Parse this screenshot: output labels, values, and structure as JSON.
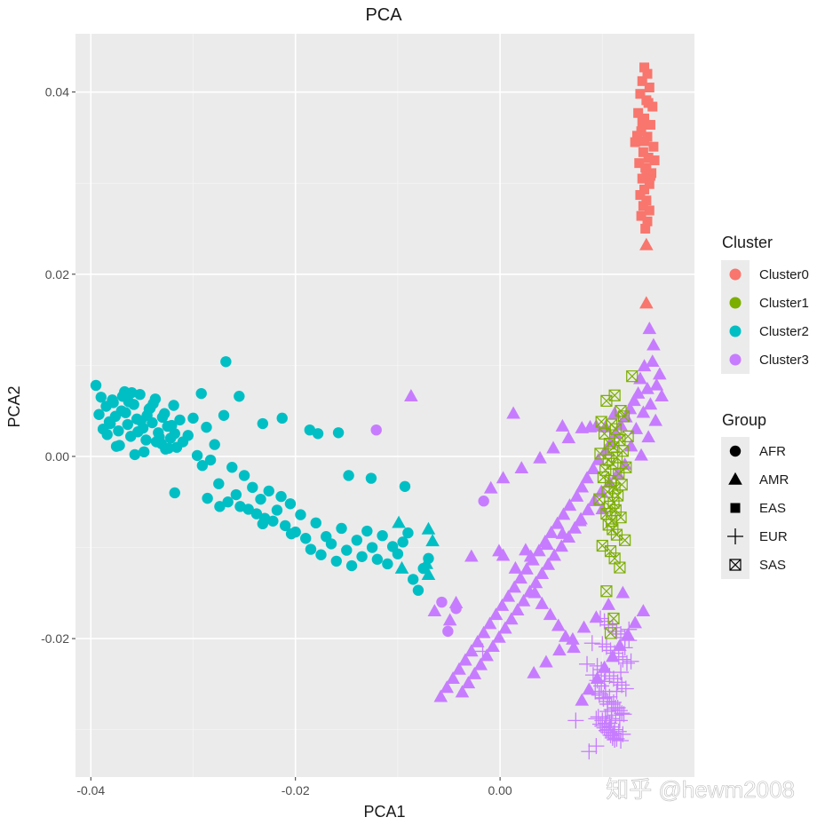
{
  "chart_data": {
    "type": "scatter",
    "title": "PCA",
    "xlabel": "PCA1",
    "ylabel": "PCA2",
    "xlim": [
      -0.0415,
      0.019
    ],
    "ylim": [
      -0.0352,
      0.0464
    ],
    "x_major_ticks": [
      -0.04,
      -0.02,
      0.0
    ],
    "x_tick_labels": [
      "-0.04",
      "-0.02",
      "0.00"
    ],
    "x_minor_ticks": [
      -0.03,
      -0.01,
      0.01
    ],
    "y_major_ticks": [
      -0.02,
      0.0,
      0.02,
      0.04
    ],
    "y_tick_labels": [
      "-0.02",
      "0.00",
      "0.02",
      "0.04"
    ],
    "y_minor_ticks": [
      -0.03,
      -0.01,
      0.01,
      0.03
    ],
    "legend_position": "right",
    "cluster_legend": {
      "title": "Cluster",
      "entries": [
        {
          "name": "Cluster0",
          "color": "#F8766D"
        },
        {
          "name": "Cluster1",
          "color": "#7CAE00"
        },
        {
          "name": "Cluster2",
          "color": "#00BFC4"
        },
        {
          "name": "Cluster3",
          "color": "#C77CFF"
        }
      ]
    },
    "group_legend": {
      "title": "Group",
      "entries": [
        {
          "name": "AFR",
          "shape": "circle"
        },
        {
          "name": "AMR",
          "shape": "triangle"
        },
        {
          "name": "EAS",
          "shape": "square"
        },
        {
          "name": "EUR",
          "shape": "plus"
        },
        {
          "name": "SAS",
          "shape": "boxx"
        }
      ]
    },
    "series": [
      {
        "name": "Cluster0 / EAS",
        "cluster": "Cluster0",
        "group": "EAS",
        "x": [
          0.0141,
          0.0144,
          0.0139,
          0.0146,
          0.0137,
          0.0143,
          0.0149,
          0.0135,
          0.0141,
          0.0147,
          0.0138,
          0.0144,
          0.0132,
          0.015,
          0.014,
          0.0145,
          0.0136,
          0.0142,
          0.0148,
          0.0139,
          0.0134,
          0.0146,
          0.0141,
          0.0151,
          0.0137,
          0.0143,
          0.014,
          0.0146,
          0.0138,
          0.0144,
          0.0142,
          0.0147,
          0.0139,
          0.0145,
          0.0141,
          0.0143
        ],
        "y": [
          0.0427,
          0.042,
          0.0412,
          0.0405,
          0.0398,
          0.0391,
          0.0384,
          0.0377,
          0.0371,
          0.0364,
          0.0357,
          0.0351,
          0.0345,
          0.034,
          0.0334,
          0.0328,
          0.0322,
          0.0317,
          0.0311,
          0.0305,
          0.0352,
          0.0299,
          0.0293,
          0.0325,
          0.0287,
          0.0281,
          0.0275,
          0.027,
          0.0264,
          0.0258,
          0.025,
          0.0308,
          0.0367,
          0.0388,
          0.0346,
          0.0315
        ]
      },
      {
        "name": "Cluster0 / AMR",
        "cluster": "Cluster0",
        "group": "AMR",
        "x": [
          0.0143,
          0.0143
        ],
        "y": [
          0.0232,
          0.0168
        ]
      },
      {
        "name": "Cluster1 / SAS",
        "cluster": "Cluster1",
        "group": "SAS",
        "x": [
          0.0129,
          0.0112,
          0.0104,
          0.0118,
          0.0121,
          0.0099,
          0.0109,
          0.0113,
          0.0102,
          0.0125,
          0.0117,
          0.0107,
          0.0111,
          0.012,
          0.0098,
          0.0114,
          0.0106,
          0.011,
          0.0123,
          0.0103,
          0.0116,
          0.0101,
          0.0108,
          0.0119,
          0.0112,
          0.0105,
          0.0115,
          0.0097,
          0.0111,
          0.0107,
          0.0113,
          0.0104,
          0.0118,
          0.0109,
          0.0106,
          0.011,
          0.0114,
          0.0122,
          0.01,
          0.0108,
          0.0112,
          0.0117,
          0.0104,
          0.0111,
          0.0108
        ],
        "y": [
          0.0088,
          0.0067,
          0.0061,
          0.005,
          0.0044,
          0.0038,
          0.0035,
          0.003,
          0.0025,
          0.0022,
          0.0018,
          0.0014,
          0.001,
          0.0006,
          0.0003,
          -0.0001,
          -0.0004,
          -0.0008,
          -0.0012,
          -0.0015,
          -0.0019,
          -0.0023,
          -0.0027,
          -0.0031,
          -0.0035,
          -0.0039,
          -0.0043,
          -0.0047,
          -0.0051,
          -0.0055,
          -0.0059,
          -0.0063,
          -0.0067,
          -0.0071,
          -0.0075,
          -0.008,
          -0.0086,
          -0.0092,
          -0.0098,
          -0.0104,
          -0.0112,
          -0.0122,
          -0.0148,
          -0.0178,
          -0.0194
        ]
      },
      {
        "name": "Cluster2 / AFR",
        "cluster": "Cluster2",
        "group": "AFR",
        "x": [
          -0.0395,
          -0.0392,
          -0.0388,
          -0.0385,
          -0.0382,
          -0.0379,
          -0.0376,
          -0.0373,
          -0.037,
          -0.0367,
          -0.0364,
          -0.0361,
          -0.0358,
          -0.0355,
          -0.0352,
          -0.0349,
          -0.0346,
          -0.0343,
          -0.034,
          -0.0337,
          -0.0334,
          -0.0331,
          -0.0328,
          -0.0325,
          -0.0322,
          -0.0319,
          -0.0316,
          -0.0313,
          -0.039,
          -0.0384,
          -0.0378,
          -0.0372,
          -0.0366,
          -0.036,
          -0.0354,
          -0.0348,
          -0.0342,
          -0.0336,
          -0.033,
          -0.0324,
          -0.0318,
          -0.0381,
          -0.0369,
          -0.0357,
          -0.0345,
          -0.0333,
          -0.0321,
          -0.0375,
          -0.0363,
          -0.0351,
          -0.0339,
          -0.0327,
          -0.031,
          -0.0305,
          -0.03,
          -0.0296,
          -0.0291,
          -0.0287,
          -0.0283,
          -0.0279,
          -0.0275,
          -0.027,
          -0.0266,
          -0.0262,
          -0.0258,
          -0.0254,
          -0.025,
          -0.0246,
          -0.0242,
          -0.0238,
          -0.0234,
          -0.023,
          -0.0226,
          -0.0222,
          -0.0218,
          -0.0214,
          -0.021,
          -0.0205,
          -0.02,
          -0.0195,
          -0.019,
          -0.0185,
          -0.018,
          -0.0175,
          -0.017,
          -0.0165,
          -0.016,
          -0.0155,
          -0.015,
          -0.0145,
          -0.014,
          -0.0135,
          -0.013,
          -0.0125,
          -0.012,
          -0.0115,
          -0.011,
          -0.0105,
          -0.01,
          -0.0095,
          -0.009,
          -0.0085,
          -0.008,
          -0.0075,
          -0.007,
          -0.0268,
          -0.0292,
          -0.0255,
          -0.0232,
          -0.0213,
          -0.0186,
          -0.0178,
          -0.0158,
          -0.0148,
          -0.0126,
          -0.0093,
          -0.0318,
          -0.0286,
          -0.0274,
          -0.0232,
          -0.0204
        ],
        "y": [
          0.0078,
          0.0046,
          0.003,
          0.0055,
          0.0038,
          0.0062,
          0.0044,
          0.0028,
          0.005,
          0.0071,
          0.0035,
          0.0022,
          0.0057,
          0.0041,
          0.0068,
          0.0031,
          0.0018,
          0.0052,
          0.0037,
          0.0063,
          0.0026,
          0.0014,
          0.0047,
          0.0033,
          0.002,
          0.0056,
          0.001,
          0.004,
          0.0065,
          0.0024,
          0.0059,
          0.0012,
          0.0048,
          0.007,
          0.0027,
          0.0005,
          0.0053,
          0.0016,
          0.0043,
          0.0009,
          0.0025,
          0.0036,
          0.0066,
          0.0002,
          0.0045,
          0.0021,
          0.0034,
          0.0011,
          0.006,
          0.0039,
          0.0058,
          0.0008,
          0.0016,
          0.0023,
          0.0042,
          0.0001,
          -0.001,
          0.0032,
          -0.0004,
          0.0013,
          -0.003,
          0.0045,
          -0.005,
          -0.0012,
          -0.0042,
          -0.0055,
          -0.0021,
          -0.0058,
          -0.0034,
          -0.0063,
          -0.0047,
          -0.0068,
          -0.0038,
          -0.0071,
          -0.0059,
          -0.0044,
          -0.0076,
          -0.0052,
          -0.0083,
          -0.0064,
          -0.009,
          -0.0102,
          -0.0073,
          -0.0108,
          -0.0088,
          -0.0096,
          -0.0115,
          -0.0079,
          -0.0103,
          -0.012,
          -0.0092,
          -0.011,
          -0.0082,
          -0.01,
          -0.0113,
          -0.0087,
          -0.0118,
          -0.0099,
          -0.0107,
          -0.0094,
          -0.0084,
          -0.0135,
          -0.0147,
          -0.0123,
          -0.0112,
          0.0104,
          0.0069,
          0.0066,
          0.0036,
          0.0042,
          0.0029,
          0.0025,
          0.0026,
          -0.0021,
          -0.0024,
          -0.0033,
          -0.004,
          -0.0046,
          -0.0055,
          -0.0074,
          -0.0085
        ]
      },
      {
        "name": "Cluster2 / AMR",
        "cluster": "Cluster2",
        "group": "AMR",
        "x": [
          -0.0099,
          -0.007,
          -0.0066,
          -0.007,
          -0.0096,
          -0.0072
        ],
        "y": [
          -0.0073,
          -0.008,
          -0.0093,
          -0.013,
          -0.0123,
          -0.0118
        ]
      },
      {
        "name": "Cluster3 / AFR",
        "cluster": "Cluster3",
        "group": "AFR",
        "x": [
          -0.0121,
          -0.0016,
          -0.0057,
          -0.0043,
          -0.0051
        ],
        "y": [
          0.0029,
          -0.0049,
          -0.016,
          -0.0167,
          -0.0192
        ]
      },
      {
        "name": "Cluster3 / AMR",
        "cluster": "Cluster3",
        "group": "AMR",
        "x": [
          0.0146,
          0.015,
          0.0149,
          0.0141,
          0.0156,
          0.0137,
          0.0153,
          0.0144,
          0.0135,
          0.0158,
          0.0131,
          0.0147,
          0.0127,
          0.014,
          0.0123,
          0.0152,
          0.0118,
          0.0133,
          0.0113,
          0.0145,
          0.0108,
          0.0128,
          0.0103,
          0.0138,
          0.0096,
          0.0122,
          0.0091,
          0.0115,
          0.0085,
          0.0107,
          0.008,
          0.0099,
          0.0075,
          0.0092,
          0.0068,
          0.0086,
          0.0062,
          0.0079,
          0.0056,
          0.0073,
          0.005,
          0.0067,
          0.0044,
          0.006,
          0.0038,
          0.0053,
          0.0032,
          0.0047,
          0.0026,
          0.0041,
          0.002,
          0.0035,
          0.0014,
          0.0029,
          0.0008,
          0.0023,
          0.0002,
          0.0017,
          -0.0004,
          0.0011,
          -0.001,
          0.0005,
          -0.0016,
          -0.0001,
          -0.0022,
          -0.0007,
          -0.0028,
          -0.0013,
          -0.0034,
          -0.0019,
          -0.004,
          -0.0025,
          -0.0046,
          -0.0031,
          -0.0052,
          -0.0037,
          -0.0058,
          -0.0043,
          -0.0064,
          -0.0049,
          0.0112,
          0.0088,
          0.0067,
          0.0052,
          0.0039,
          0.0021,
          0.0003,
          -0.0009,
          0.01,
          0.0078,
          0.0061,
          0.0046,
          0.003,
          0.0015,
          0.012,
          0.0106,
          0.0094,
          0.0082,
          0.0071,
          0.0058,
          0.0045,
          0.0033,
          0.014,
          0.0132,
          0.0125,
          0.0117,
          0.011,
          0.0102,
          0.0095,
          0.0087,
          0.008,
          0.0072,
          0.0064,
          0.0057,
          0.0049,
          0.0041,
          0.0034,
          -0.0087,
          0.0013,
          0.0061,
          0.008,
          0.0094,
          0.0103,
          0.0025,
          -0.0001,
          0.0003,
          -0.0028
        ],
        "y": [
          0.014,
          0.0122,
          0.0104,
          0.0099,
          0.009,
          0.0085,
          0.0078,
          0.0074,
          0.0069,
          0.0066,
          0.0061,
          0.0057,
          0.0052,
          0.0048,
          0.0043,
          0.0039,
          0.0034,
          0.003,
          0.0025,
          0.0021,
          0.0015,
          0.0011,
          0.0006,
          0.0001,
          -0.0004,
          -0.0009,
          -0.0014,
          -0.0019,
          -0.0024,
          -0.0029,
          -0.0034,
          -0.0039,
          -0.0044,
          -0.0049,
          -0.0054,
          -0.0059,
          -0.0064,
          -0.0069,
          -0.0074,
          -0.0079,
          -0.0084,
          -0.0089,
          -0.0094,
          -0.0099,
          -0.0104,
          -0.0109,
          -0.0114,
          -0.0119,
          -0.0124,
          -0.0129,
          -0.0134,
          -0.0139,
          -0.0144,
          -0.0149,
          -0.0154,
          -0.0159,
          -0.0164,
          -0.0169,
          -0.0174,
          -0.0179,
          -0.0184,
          -0.0189,
          -0.0194,
          -0.0199,
          -0.0204,
          -0.0209,
          -0.0214,
          -0.0219,
          -0.0224,
          -0.0229,
          -0.0234,
          -0.0239,
          -0.0244,
          -0.0249,
          -0.0254,
          -0.0259,
          -0.0264,
          -0.0161,
          -0.017,
          -0.018,
          0.0047,
          0.0032,
          0.002,
          0.0009,
          -0.0002,
          -0.0013,
          -0.0024,
          -0.0035,
          -0.0058,
          -0.0071,
          -0.0085,
          -0.0097,
          -0.011,
          -0.0123,
          -0.015,
          -0.0163,
          -0.0177,
          -0.0188,
          -0.0201,
          -0.0213,
          -0.0226,
          -0.0238,
          -0.017,
          -0.0183,
          -0.0196,
          -0.0208,
          -0.022,
          -0.0232,
          -0.0244,
          -0.0256,
          -0.0268,
          -0.021,
          -0.0198,
          -0.0186,
          -0.0174,
          -0.0162,
          -0.015,
          0.0066,
          0.0047,
          0.0033,
          0.0031,
          0.0033,
          0.0032,
          -0.0103,
          -0.0104,
          -0.0109,
          -0.011
        ]
      },
      {
        "name": "Cluster3 / EUR",
        "cluster": "Cluster3",
        "group": "EUR",
        "x": [
          0.0098,
          0.0102,
          0.0106,
          0.011,
          0.0114,
          0.0118,
          0.0122,
          0.0126,
          0.01,
          0.0104,
          0.0108,
          0.0112,
          0.0116,
          0.012,
          0.0124,
          0.0095,
          0.0099,
          0.0103,
          0.0107,
          0.0111,
          0.0115,
          0.0119,
          0.0123,
          0.0093,
          0.0097,
          0.0101,
          0.0105,
          0.0109,
          0.0113,
          0.0117,
          0.0121,
          0.0096,
          0.01,
          0.0104,
          0.0108,
          0.0112,
          0.0116,
          0.012,
          0.0091,
          0.0095,
          0.0099,
          0.0103,
          0.0107,
          0.0111,
          0.0115,
          0.0119,
          0.0094,
          0.0098,
          0.0102,
          0.0106,
          0.011,
          0.0114,
          0.0118,
          0.0097,
          0.0101,
          0.0105,
          0.0109,
          0.0113,
          0.0117,
          0.01,
          0.0104,
          0.0108,
          0.0112,
          0.0106,
          0.011,
          0.0103,
          0.0107,
          0.0111,
          0.0105,
          0.0109,
          0.0126,
          0.0122,
          0.0128,
          0.009,
          0.0085,
          0.0118,
          0.0102,
          0.0114,
          -0.0017,
          0.0074,
          0.0094,
          0.0087
        ],
        "y": [
          -0.0178,
          -0.0181,
          -0.0185,
          -0.0188,
          -0.0192,
          -0.0195,
          -0.0199,
          -0.0202,
          -0.0206,
          -0.0209,
          -0.0213,
          -0.0216,
          -0.022,
          -0.0223,
          -0.0227,
          -0.023,
          -0.0234,
          -0.0237,
          -0.0241,
          -0.0244,
          -0.0248,
          -0.0251,
          -0.0255,
          -0.0258,
          -0.0262,
          -0.0265,
          -0.0269,
          -0.0272,
          -0.0276,
          -0.0279,
          -0.0283,
          -0.0286,
          -0.029,
          -0.0293,
          -0.0297,
          -0.03,
          -0.0302,
          -0.0305,
          -0.024,
          -0.0246,
          -0.0252,
          -0.0258,
          -0.0264,
          -0.027,
          -0.0276,
          -0.0282,
          -0.0288,
          -0.0294,
          -0.0298,
          -0.0303,
          -0.0307,
          -0.031,
          -0.0312,
          -0.026,
          -0.0266,
          -0.0272,
          -0.0278,
          -0.0284,
          -0.029,
          -0.0296,
          -0.0301,
          -0.0306,
          -0.0311,
          -0.03,
          -0.0309,
          -0.0286,
          -0.0293,
          -0.0304,
          -0.028,
          -0.0288,
          -0.019,
          -0.021,
          -0.0225,
          -0.0205,
          -0.0228,
          -0.0237,
          -0.0247,
          -0.0258,
          -0.0214,
          -0.029,
          -0.0318,
          -0.0324
        ]
      }
    ]
  },
  "watermark": "知乎 @hewm2008"
}
